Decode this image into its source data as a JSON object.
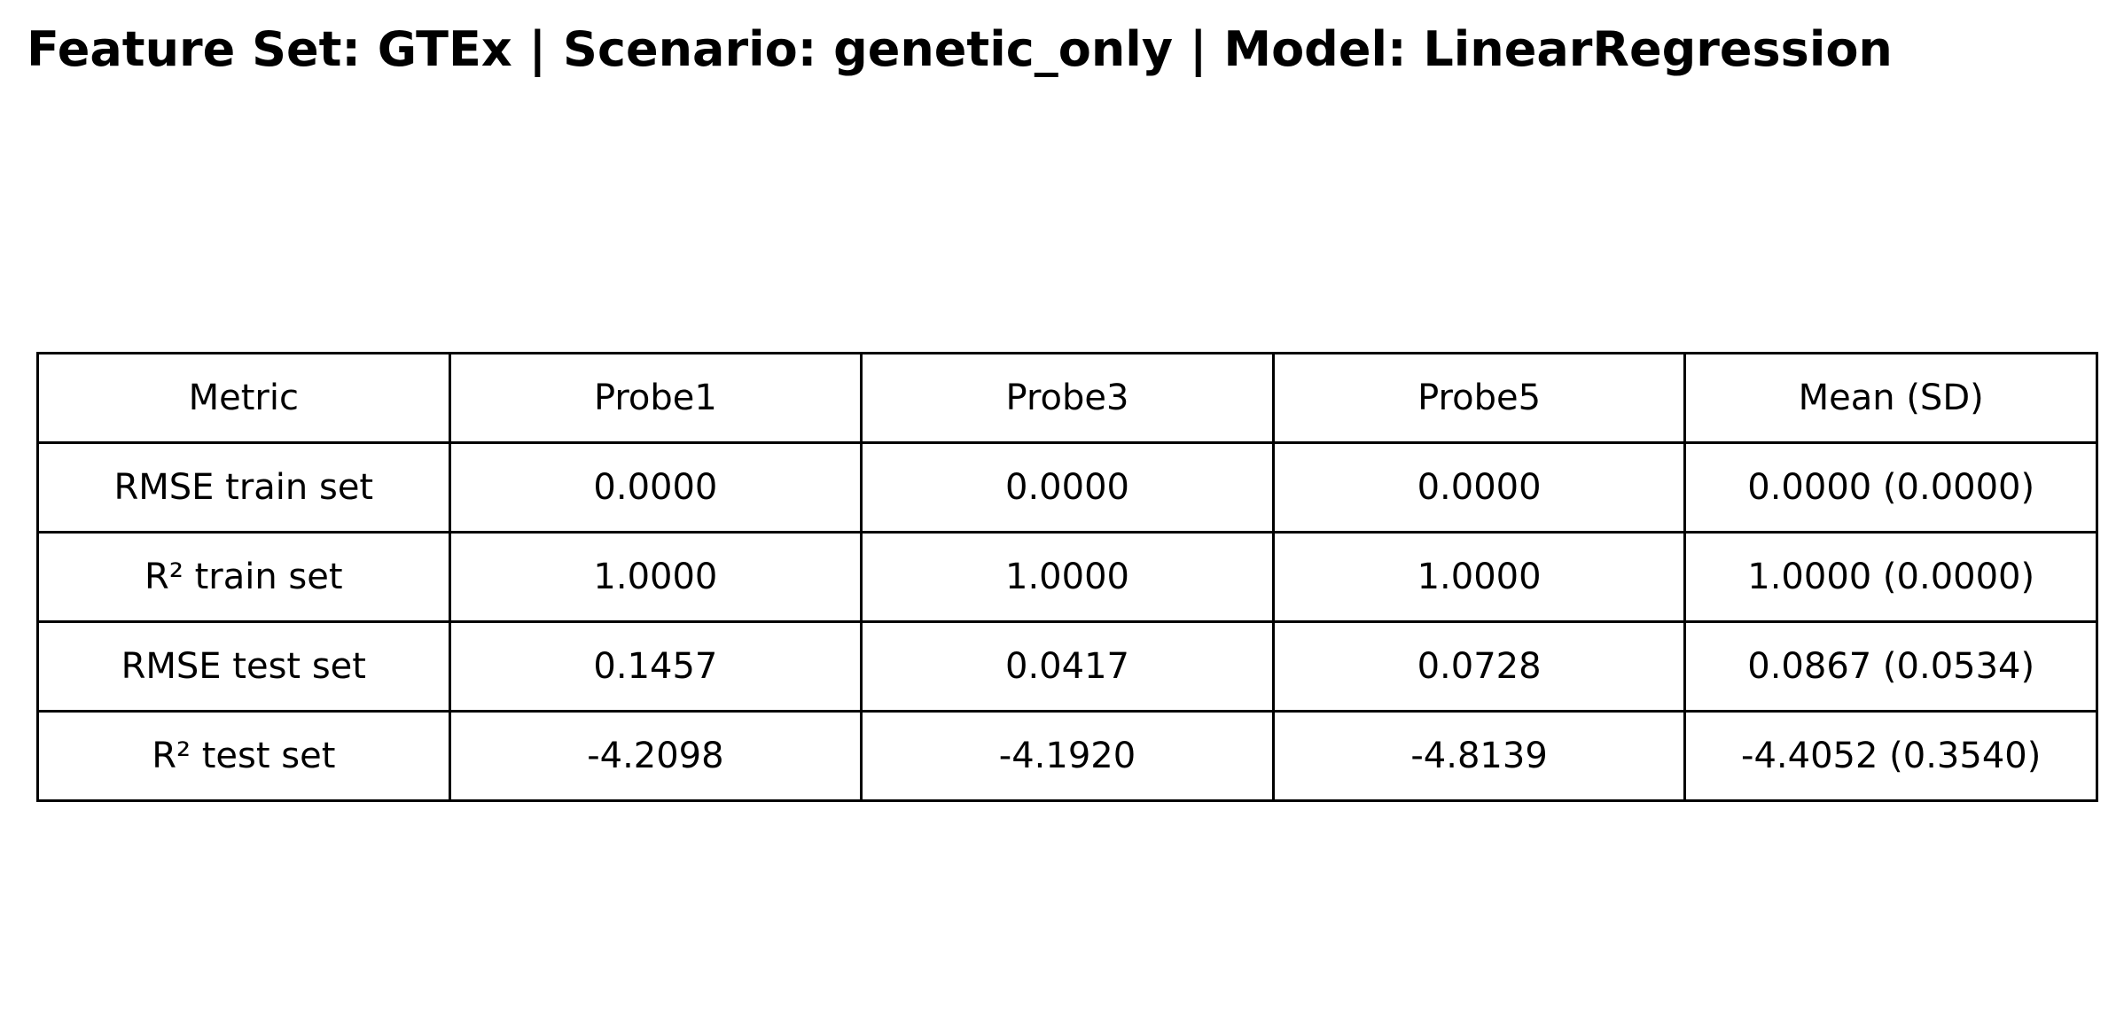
{
  "title": "Feature Set: GTEx | Scenario: genetic_only | Model: LinearRegression",
  "chart_data": {
    "type": "table",
    "title": "Feature Set: GTEx | Scenario: genetic_only | Model: LinearRegression",
    "columns": [
      "Metric",
      "Probe1",
      "Probe3",
      "Probe5",
      "Mean (SD)"
    ],
    "rows": [
      [
        "RMSE train set",
        "0.0000",
        "0.0000",
        "0.0000",
        "0.0000 (0.0000)"
      ],
      [
        "R² train set",
        "1.0000",
        "1.0000",
        "1.0000",
        "1.0000 (0.0000)"
      ],
      [
        "RMSE test set",
        "0.1457",
        "0.0417",
        "0.0728",
        "0.0867 (0.0534)"
      ],
      [
        "R² test set",
        "-4.2098",
        "-4.1920",
        "-4.8139",
        "-4.4052 (0.3540)"
      ]
    ]
  }
}
